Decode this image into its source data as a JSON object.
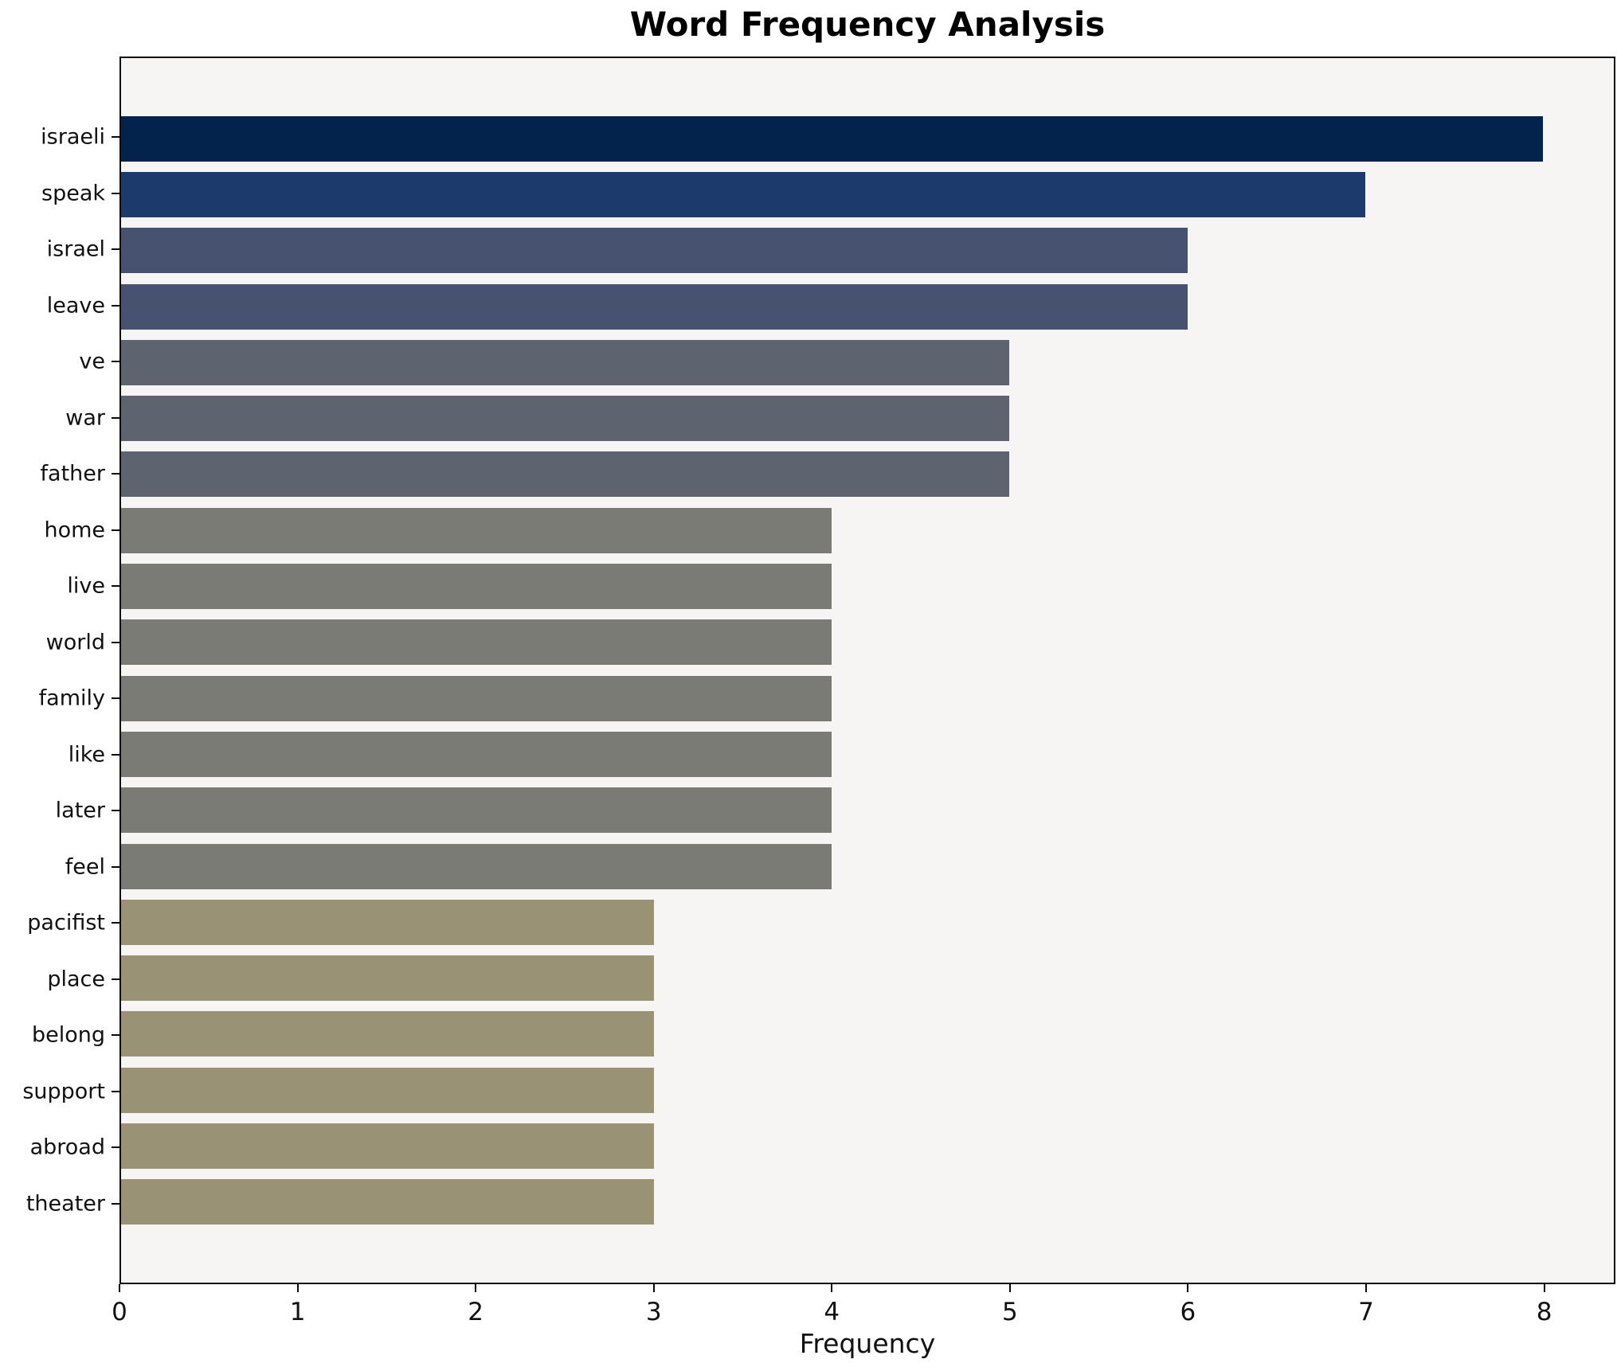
{
  "title": "Word Frequency Analysis",
  "chart_data": {
    "type": "bar",
    "orientation": "horizontal",
    "title": "Word Frequency Analysis",
    "xlabel": "Frequency",
    "ylabel": "",
    "categories": [
      "israeli",
      "speak",
      "israel",
      "leave",
      "ve",
      "war",
      "father",
      "home",
      "live",
      "world",
      "family",
      "like",
      "later",
      "feel",
      "pacifist",
      "place",
      "belong",
      "support",
      "abroad",
      "theater"
    ],
    "values": [
      8,
      7,
      6,
      6,
      5,
      5,
      5,
      4,
      4,
      4,
      4,
      4,
      4,
      4,
      3,
      3,
      3,
      3,
      3,
      3
    ],
    "bar_colors": [
      "#03224c",
      "#1d3a6c",
      "#475170",
      "#475170",
      "#5e6370",
      "#5e6370",
      "#5e6370",
      "#7a7b74",
      "#7a7b74",
      "#7a7b74",
      "#7a7b74",
      "#7a7b74",
      "#7a7b74",
      "#7a7b74",
      "#999274",
      "#999274",
      "#999274",
      "#999274",
      "#999274",
      "#999274"
    ],
    "xticks": [
      0,
      1,
      2,
      3,
      4,
      5,
      6,
      7,
      8
    ],
    "xlim": [
      0,
      8.4
    ],
    "grid": false,
    "legend_position": "none",
    "plot_background": "#f6f5f3",
    "spine_color": "#0a0a0a"
  }
}
